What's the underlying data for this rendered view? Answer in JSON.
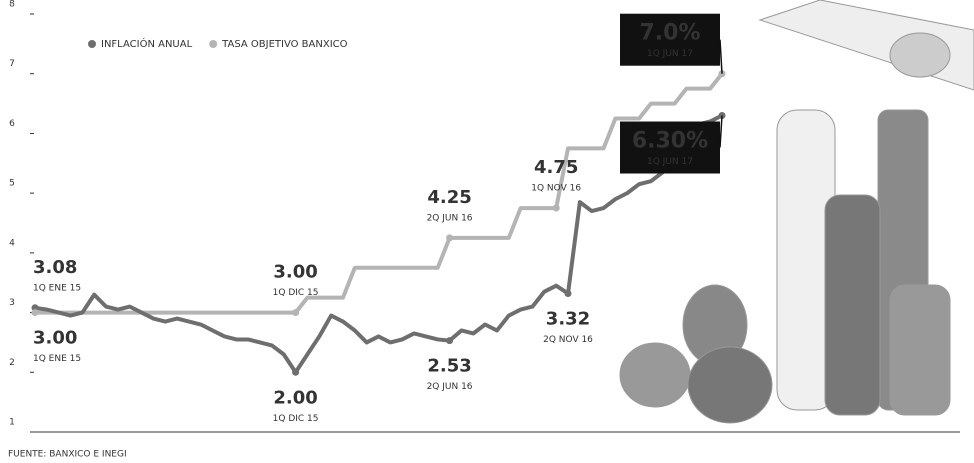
{
  "chart_data": {
    "type": "line",
    "categories": [
      "1Q ENE 15",
      null,
      null,
      null,
      null,
      null,
      null,
      null,
      null,
      null,
      null,
      null,
      null,
      null,
      null,
      null,
      null,
      null,
      null,
      null,
      null,
      null,
      "1Q DIC 15",
      null,
      null,
      null,
      null,
      null,
      null,
      null,
      null,
      null,
      null,
      null,
      null,
      "2Q JUN 16",
      null,
      null,
      null,
      null,
      null,
      null,
      null,
      null,
      "1Q NOV 16",
      "2Q NOV 16",
      null,
      null,
      null,
      null,
      null,
      null,
      null,
      null,
      null,
      null,
      null,
      null,
      "1Q JUN 17"
    ],
    "series": [
      {
        "name": "INFLACIÓN ANUAL",
        "color": "#6e6e6e",
        "values": [
          3.08,
          3.05,
          3.0,
          2.95,
          3.0,
          3.3,
          3.1,
          3.05,
          3.1,
          3.0,
          2.9,
          2.85,
          2.9,
          2.85,
          2.8,
          2.7,
          2.6,
          2.55,
          2.55,
          2.5,
          2.45,
          2.3,
          2.0,
          2.3,
          2.6,
          2.95,
          2.85,
          2.7,
          2.5,
          2.6,
          2.5,
          2.55,
          2.65,
          2.6,
          2.55,
          2.53,
          2.7,
          2.65,
          2.8,
          2.7,
          2.95,
          3.05,
          3.1,
          3.35,
          3.45,
          3.32,
          4.85,
          4.7,
          4.75,
          4.9,
          5.0,
          5.15,
          5.2,
          5.35,
          5.5,
          6.0,
          6.15,
          6.2,
          6.3
        ],
        "value_labels": [
          "3.08",
          null,
          null,
          null,
          null,
          null,
          null,
          null,
          null,
          null,
          null,
          null,
          null,
          null,
          null,
          null,
          null,
          null,
          null,
          null,
          null,
          null,
          "2.00",
          null,
          null,
          null,
          null,
          null,
          null,
          null,
          null,
          null,
          null,
          null,
          null,
          "2.53",
          null,
          null,
          null,
          null,
          null,
          null,
          null,
          null,
          null,
          "3.32",
          null,
          null,
          null,
          null,
          null,
          null,
          null,
          null,
          null,
          null,
          null,
          null,
          "6.30%"
        ]
      },
      {
        "name": "TASA OBJETIVO BANXICO",
        "color": "#b4b4b4",
        "values": [
          3.0,
          3.0,
          3.0,
          3.0,
          3.0,
          3.0,
          3.0,
          3.0,
          3.0,
          3.0,
          3.0,
          3.0,
          3.0,
          3.0,
          3.0,
          3.0,
          3.0,
          3.0,
          3.0,
          3.0,
          3.0,
          3.0,
          3.0,
          3.25,
          3.25,
          3.25,
          3.25,
          3.75,
          3.75,
          3.75,
          3.75,
          3.75,
          3.75,
          3.75,
          3.75,
          4.25,
          4.25,
          4.25,
          4.25,
          4.25,
          4.25,
          4.75,
          4.75,
          4.75,
          4.75,
          5.75,
          5.75,
          5.75,
          5.75,
          6.25,
          6.25,
          6.25,
          6.5,
          6.5,
          6.5,
          6.75,
          6.75,
          6.75,
          7.0
        ],
        "value_labels": [
          "3.00",
          null,
          null,
          null,
          null,
          null,
          null,
          null,
          null,
          null,
          null,
          null,
          null,
          null,
          null,
          null,
          null,
          null,
          null,
          null,
          null,
          null,
          "3.00",
          null,
          null,
          null,
          null,
          null,
          null,
          null,
          null,
          null,
          null,
          null,
          null,
          "4.25",
          null,
          null,
          null,
          null,
          null,
          null,
          null,
          null,
          "4.75",
          null,
          null,
          null,
          null,
          null,
          null,
          null,
          null,
          null,
          null,
          null,
          null,
          null,
          "7.0%"
        ]
      }
    ],
    "ylim": [
      1,
      8
    ],
    "yticks": [
      1,
      2,
      3,
      4,
      5,
      6,
      7,
      8
    ],
    "source": "FUENTE: BANXICO E INEGI",
    "legend": "top-left"
  }
}
